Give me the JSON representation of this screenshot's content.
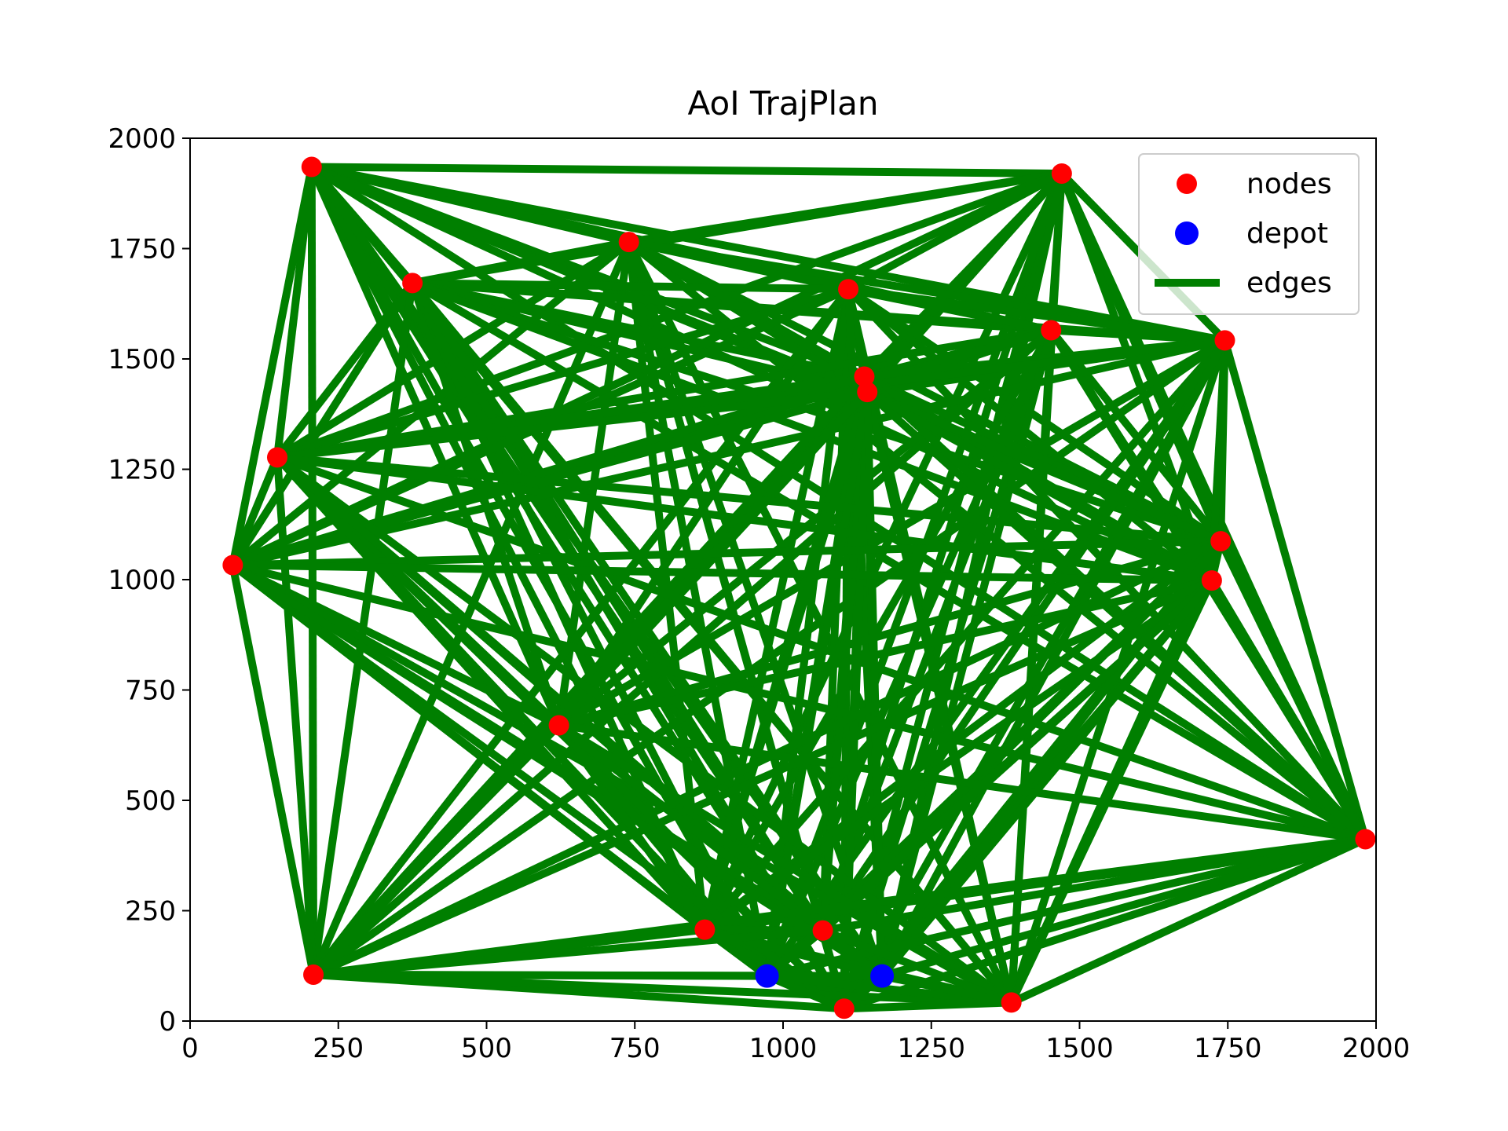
{
  "chart_data": {
    "type": "scatter",
    "title": "AoI TrajPlan",
    "xlabel": "",
    "ylabel": "",
    "xlim": [
      0,
      2000
    ],
    "ylim": [
      0,
      2000
    ],
    "xticks": [
      0,
      250,
      500,
      750,
      1000,
      1250,
      1500,
      1750,
      2000
    ],
    "yticks": [
      0,
      250,
      500,
      750,
      1000,
      1250,
      1500,
      1750,
      2000
    ],
    "grid": false,
    "legend_position": "top-right",
    "colors": {
      "nodes": "#ff0000",
      "depot": "#0000ff",
      "edges": "#007f00"
    },
    "series": [
      {
        "name": "nodes",
        "kind": "points",
        "points": [
          {
            "x": 205,
            "y": 1935
          },
          {
            "x": 1470,
            "y": 1920
          },
          {
            "x": 740,
            "y": 1765
          },
          {
            "x": 375,
            "y": 1672
          },
          {
            "x": 1110,
            "y": 1658
          },
          {
            "x": 1452,
            "y": 1565
          },
          {
            "x": 1745,
            "y": 1542
          },
          {
            "x": 1137,
            "y": 1460
          },
          {
            "x": 1142,
            "y": 1425
          },
          {
            "x": 147,
            "y": 1277
          },
          {
            "x": 72,
            "y": 1033
          },
          {
            "x": 1738,
            "y": 1087
          },
          {
            "x": 1723,
            "y": 998
          },
          {
            "x": 622,
            "y": 670
          },
          {
            "x": 1982,
            "y": 412
          },
          {
            "x": 868,
            "y": 207
          },
          {
            "x": 1067,
            "y": 205
          },
          {
            "x": 208,
            "y": 105
          },
          {
            "x": 1103,
            "y": 28
          },
          {
            "x": 1385,
            "y": 42
          }
        ]
      },
      {
        "name": "depot",
        "kind": "points",
        "points": [
          {
            "x": 973,
            "y": 102
          },
          {
            "x": 1167,
            "y": 102
          }
        ]
      },
      {
        "name": "edges",
        "kind": "complete-graph",
        "note_from_legend": "edges"
      }
    ]
  }
}
